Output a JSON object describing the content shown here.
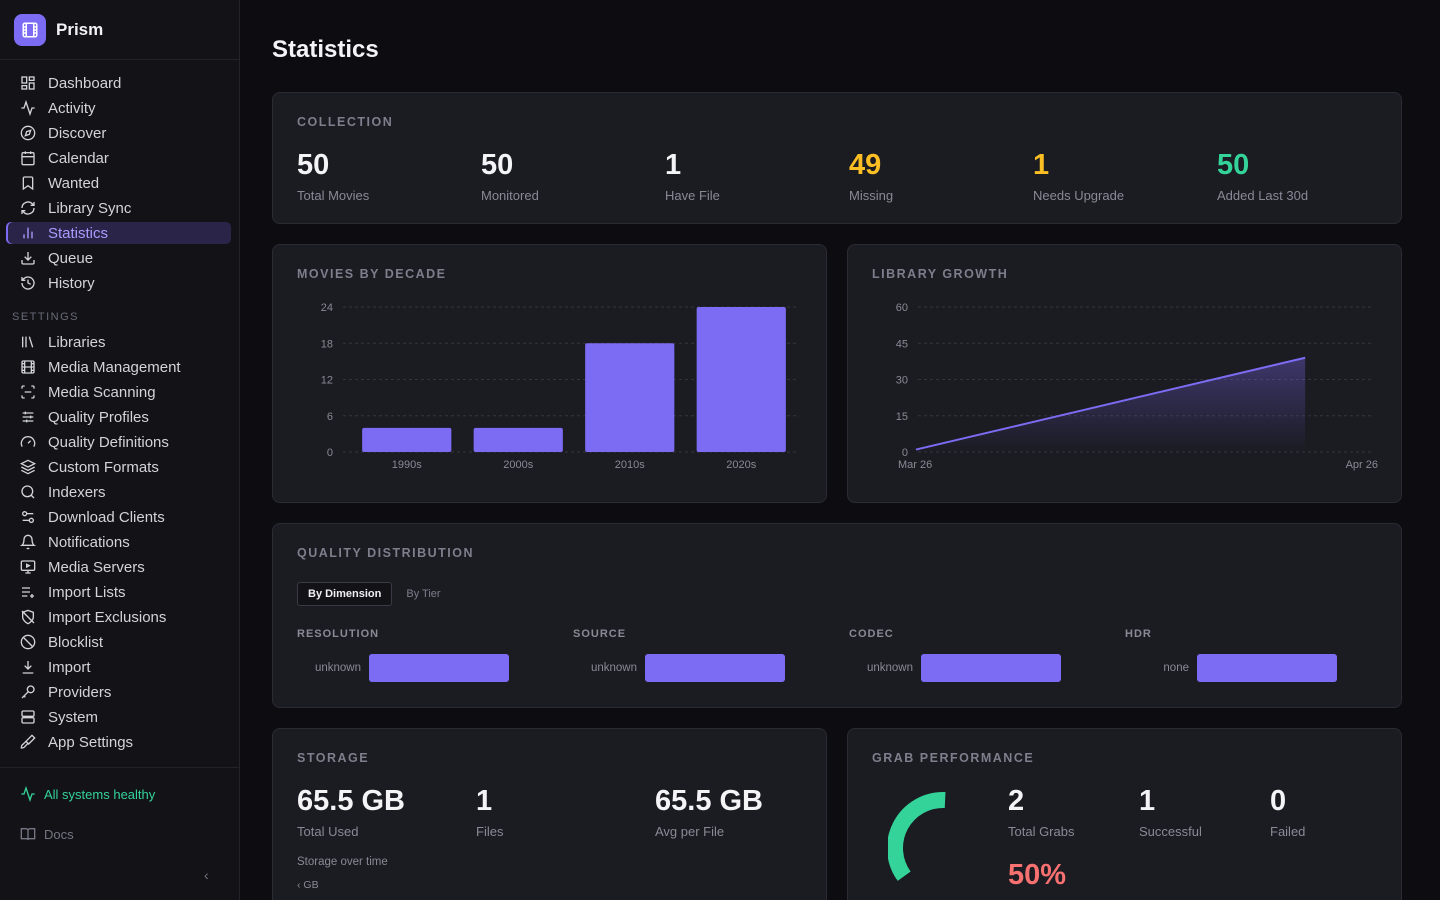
{
  "app": {
    "name": "Prism"
  },
  "sidebar": {
    "nav": [
      {
        "label": "Dashboard",
        "icon": "dashboard-icon"
      },
      {
        "label": "Activity",
        "icon": "activity-icon"
      },
      {
        "label": "Discover",
        "icon": "compass-icon"
      },
      {
        "label": "Calendar",
        "icon": "calendar-icon"
      },
      {
        "label": "Wanted",
        "icon": "bookmark-icon"
      },
      {
        "label": "Library Sync",
        "icon": "sync-icon"
      },
      {
        "label": "Statistics",
        "icon": "bar-chart-icon",
        "active": true
      },
      {
        "label": "Queue",
        "icon": "download-icon"
      },
      {
        "label": "History",
        "icon": "history-icon"
      }
    ],
    "settings_label": "SETTINGS",
    "settings": [
      {
        "label": "Libraries",
        "icon": "library-icon"
      },
      {
        "label": "Media Management",
        "icon": "film-icon"
      },
      {
        "label": "Media Scanning",
        "icon": "scan-icon"
      },
      {
        "label": "Quality Profiles",
        "icon": "sliders-icon"
      },
      {
        "label": "Quality Definitions",
        "icon": "gauge-icon"
      },
      {
        "label": "Custom Formats",
        "icon": "layers-icon"
      },
      {
        "label": "Indexers",
        "icon": "search-icon"
      },
      {
        "label": "Download Clients",
        "icon": "toggles-icon"
      },
      {
        "label": "Notifications",
        "icon": "bell-icon"
      },
      {
        "label": "Media Servers",
        "icon": "monitor-icon"
      },
      {
        "label": "Import Lists",
        "icon": "list-plus-icon"
      },
      {
        "label": "Import Exclusions",
        "icon": "shield-off-icon"
      },
      {
        "label": "Blocklist",
        "icon": "ban-icon"
      },
      {
        "label": "Import",
        "icon": "import-icon"
      },
      {
        "label": "Providers",
        "icon": "key-icon"
      },
      {
        "label": "System",
        "icon": "server-icon"
      },
      {
        "label": "App Settings",
        "icon": "brush-icon"
      }
    ],
    "health": "All systems healthy",
    "docs": "Docs",
    "collapse": "‹"
  },
  "page": {
    "title": "Statistics"
  },
  "collection": {
    "title": "COLLECTION",
    "stats": [
      {
        "value": "50",
        "label": "Total Movies",
        "color": "#f4f4f7"
      },
      {
        "value": "50",
        "label": "Monitored",
        "color": "#f4f4f7"
      },
      {
        "value": "1",
        "label": "Have File",
        "color": "#f4f4f7"
      },
      {
        "value": "49",
        "label": "Missing",
        "color": "#fbbf24"
      },
      {
        "value": "1",
        "label": "Needs Upgrade",
        "color": "#fbbf24"
      },
      {
        "value": "50",
        "label": "Added Last 30d",
        "color": "#34d399"
      }
    ]
  },
  "decade": {
    "title": "MOVIES BY DECADE",
    "chart_data": {
      "type": "bar",
      "categories": [
        "1990s",
        "2000s",
        "2010s",
        "2020s"
      ],
      "values": [
        4,
        4,
        18,
        24
      ],
      "yticks": [
        0,
        6,
        12,
        18,
        24
      ],
      "ylim": [
        0,
        24
      ],
      "color": "#7c6cf4"
    }
  },
  "growth": {
    "title": "LIBRARY GROWTH",
    "chart_data": {
      "type": "area",
      "xtick_labels": [
        "Mar 26",
        "Apr 26"
      ],
      "x_start": "Mar 26",
      "x_end": "Apr 26",
      "points": [
        {
          "x": "Mar 26",
          "y": 1
        },
        {
          "x": "Apr 21",
          "y": 39
        }
      ],
      "yticks": [
        0,
        15,
        30,
        45,
        60
      ],
      "ylim": [
        0,
        60
      ],
      "color": "#7c6cf4"
    }
  },
  "quality": {
    "title": "QUALITY DISTRIBUTION",
    "tabs": [
      "By Dimension",
      "By Tier"
    ],
    "groups": [
      {
        "head": "RESOLUTION",
        "label": "unknown",
        "value": 1
      },
      {
        "head": "SOURCE",
        "label": "unknown",
        "value": 1
      },
      {
        "head": "CODEC",
        "label": "unknown",
        "value": 1
      },
      {
        "head": "HDR",
        "label": "none",
        "value": 1
      }
    ]
  },
  "storage": {
    "title": "STORAGE",
    "stats": [
      {
        "value": "65.5 GB",
        "label": "Total Used"
      },
      {
        "value": "1",
        "label": "Files"
      },
      {
        "value": "65.5 GB",
        "label": "Avg per File"
      }
    ],
    "over_time": "Storage over time",
    "axis_unit": "GB"
  },
  "grab": {
    "title": "GRAB PERFORMANCE",
    "stats": [
      {
        "value": "2",
        "label": "Total Grabs"
      },
      {
        "value": "1",
        "label": "Successful"
      },
      {
        "value": "0",
        "label": "Failed"
      }
    ],
    "success_rate": "50%",
    "gauge_fraction": 0.5,
    "gauge_color": "#34d399"
  }
}
